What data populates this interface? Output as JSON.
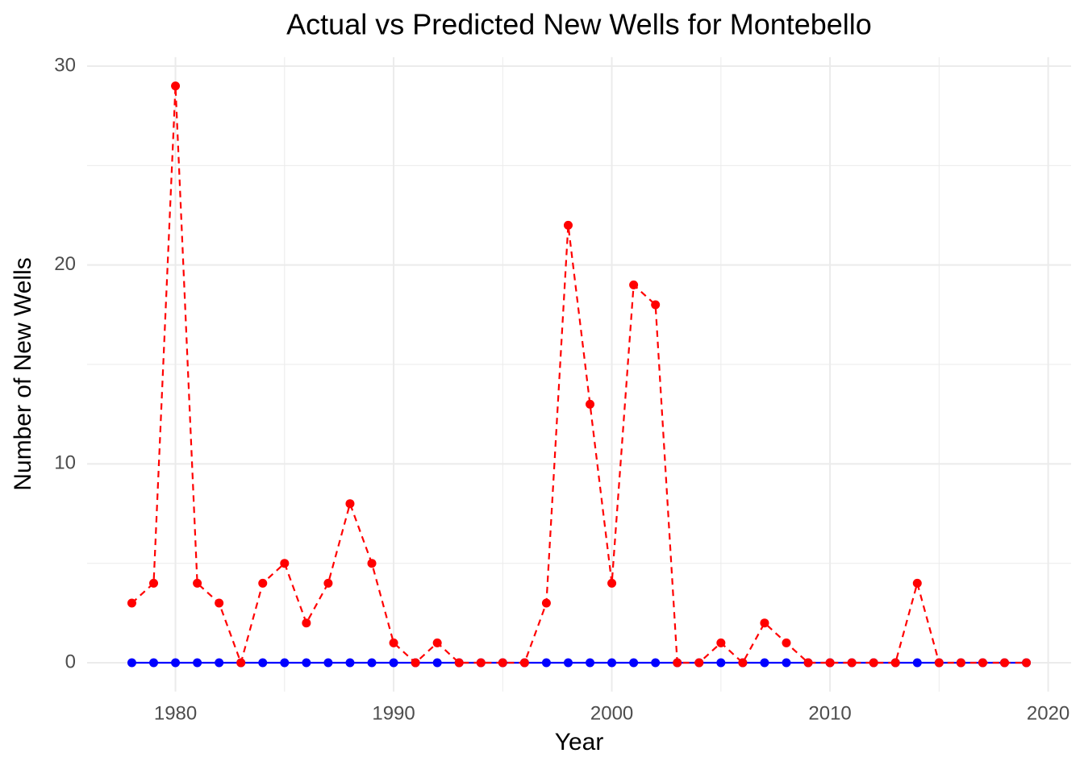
{
  "chart_data": {
    "type": "line",
    "title": "Actual vs Predicted New Wells for Montebello",
    "x_label": "Year",
    "y_label": "Number of New Wells",
    "x": [
      1978,
      1979,
      1980,
      1981,
      1982,
      1983,
      1984,
      1985,
      1986,
      1987,
      1988,
      1989,
      1990,
      1991,
      1992,
      1993,
      1994,
      1995,
      1996,
      1997,
      1998,
      1999,
      2000,
      2001,
      2002,
      2003,
      2004,
      2005,
      2006,
      2007,
      2008,
      2009,
      2010,
      2011,
      2012,
      2013,
      2014,
      2015,
      2016,
      2017,
      2018,
      2019
    ],
    "series": [
      {
        "color": "#0000ff",
        "dash": false,
        "values": [
          0,
          0,
          0,
          0,
          0,
          0,
          0,
          0,
          0,
          0,
          0,
          0,
          0,
          0,
          0,
          0,
          0,
          0,
          0,
          0,
          0,
          0,
          0,
          0,
          0,
          0,
          0,
          0,
          0,
          0,
          0,
          0,
          0,
          0,
          0,
          0,
          0,
          0,
          0,
          0,
          0,
          0
        ]
      },
      {
        "color": "#ff0000",
        "dash": true,
        "values": [
          3,
          4,
          29,
          4,
          3,
          0,
          4,
          5,
          2,
          4,
          8,
          5,
          1,
          0,
          1,
          0,
          0,
          0,
          0,
          3,
          22,
          13,
          4,
          19,
          18,
          0,
          0,
          1,
          0,
          2,
          1,
          0,
          0,
          0,
          0,
          0,
          4,
          0,
          0,
          0,
          0,
          0
        ]
      }
    ],
    "xlim": [
      1975.95,
      2021.05
    ],
    "xticks": [
      1980,
      1990,
      2000,
      2010,
      2020
    ],
    "ylim": [
      -1.45,
      30.45
    ],
    "yticks": [
      0,
      10,
      20,
      30
    ],
    "grid": true
  }
}
